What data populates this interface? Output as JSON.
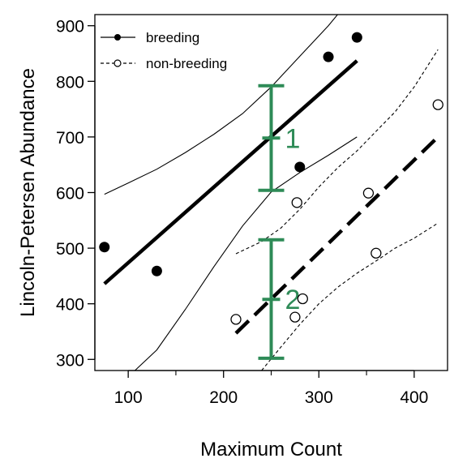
{
  "chart_data": {
    "type": "scatter",
    "xlabel": "Maximum Count",
    "ylabel": "Lincoln-Petersen Abundance",
    "xlim": [
      65,
      435
    ],
    "ylim": [
      280,
      920
    ],
    "x_ticks": [
      100,
      200,
      300,
      400
    ],
    "y_ticks": [
      300,
      400,
      500,
      600,
      700,
      800,
      900
    ],
    "grid": false,
    "legend_position": "top-left",
    "series": [
      {
        "name": "breeding",
        "marker": "filled-circle",
        "line_style": "solid",
        "points": [
          {
            "x": 75,
            "y": 502
          },
          {
            "x": 130,
            "y": 459
          },
          {
            "x": 280,
            "y": 646
          },
          {
            "x": 310,
            "y": 844
          },
          {
            "x": 340,
            "y": 879
          }
        ],
        "fit": {
          "x": [
            75,
            340
          ],
          "y": [
            436,
            837
          ]
        },
        "ci_lower": {
          "x": [
            107,
            130,
            160,
            190,
            220,
            250,
            280,
            310,
            340
          ],
          "y": [
            280,
            317,
            390,
            467,
            540,
            601,
            636,
            667,
            700
          ]
        },
        "ci_upper": {
          "x": [
            75,
            100,
            130,
            160,
            190,
            220,
            250,
            280,
            310,
            340
          ],
          "y": [
            597,
            617,
            642,
            672,
            705,
            742,
            790,
            845,
            900,
            962
          ]
        }
      },
      {
        "name": "non-breeding",
        "marker": "open-circle",
        "line_style": "dashed",
        "points": [
          {
            "x": 213,
            "y": 372
          },
          {
            "x": 275,
            "y": 376
          },
          {
            "x": 283,
            "y": 409
          },
          {
            "x": 277,
            "y": 582
          },
          {
            "x": 352,
            "y": 599
          },
          {
            "x": 360,
            "y": 491
          },
          {
            "x": 425,
            "y": 758
          }
        ],
        "fit": {
          "x": [
            213,
            425
          ],
          "y": [
            347,
            700
          ]
        },
        "ci_lower": {
          "x": [
            240,
            260,
            280,
            300,
            320,
            340,
            360,
            380,
            400,
            425
          ],
          "y": [
            280,
            322,
            363,
            400,
            430,
            455,
            477,
            500,
            518,
            545
          ]
        },
        "ci_upper": {
          "x": [
            213,
            240,
            260,
            280,
            300,
            320,
            340,
            360,
            380,
            400,
            425
          ],
          "y": [
            490,
            512,
            536,
            570,
            610,
            645,
            675,
            710,
            745,
            790,
            857
          ]
        }
      }
    ],
    "annotations": [
      {
        "label": "1",
        "x": 250,
        "center": 698,
        "lower": 604,
        "upper": 792,
        "color": "#2e8b57"
      },
      {
        "label": "2",
        "x": 250,
        "center": 408,
        "lower": 302,
        "upper": 515,
        "color": "#2e8b57"
      }
    ]
  }
}
